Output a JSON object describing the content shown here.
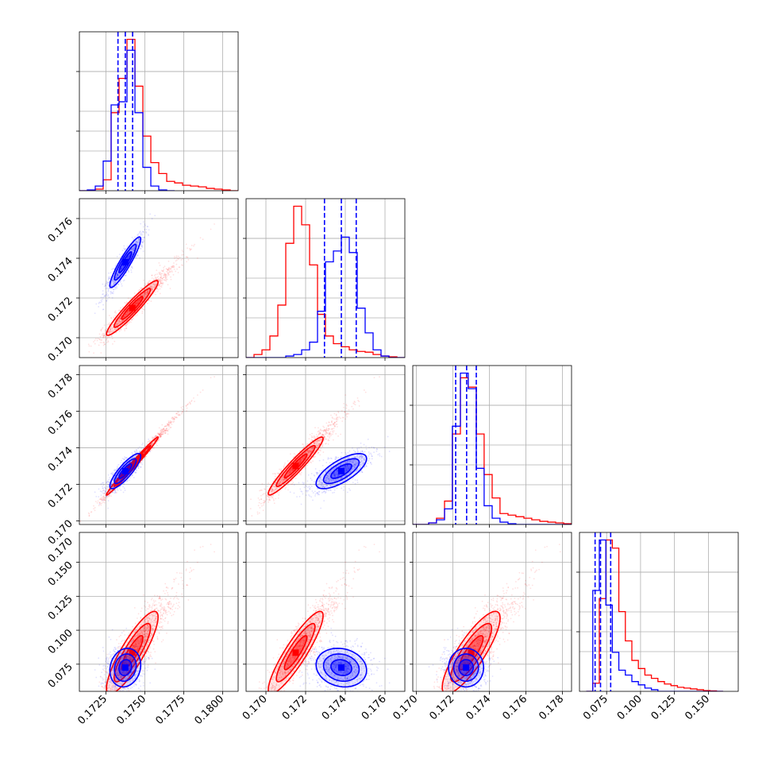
{
  "figure": {
    "type": "corner",
    "grid": true,
    "colors": {
      "series_a": "#0000ff",
      "series_b": "#ff0000",
      "frame": "#000000",
      "grid": "#b0b0b0"
    },
    "description": ""
  },
  "chart_data": {
    "type": "corner",
    "parameters": [
      {
        "range": [
          0.1708,
          0.181
        ],
        "ticks": [
          0.1725,
          0.175,
          0.1775,
          0.18
        ],
        "tick_labels": [
          "0.1725",
          "0.1750",
          "0.1775",
          "0.1800"
        ]
      },
      {
        "range": [
          0.169,
          0.177
        ],
        "ticks": [
          0.17,
          0.172,
          0.174,
          0.176
        ],
        "tick_labels": [
          "0.170",
          "0.172",
          "0.174",
          "0.176"
        ]
      },
      {
        "range": [
          0.1698,
          0.1785
        ],
        "ticks": [
          0.17,
          0.172,
          0.174,
          0.176,
          0.178
        ],
        "tick_labels": [
          "0.170",
          "0.172",
          "0.174",
          "0.176",
          "0.178"
        ]
      },
      {
        "range": [
          0.055,
          0.172
        ],
        "ticks": [
          0.075,
          0.1,
          0.125,
          0.15
        ],
        "tick_labels": [
          "0.075",
          "0.100",
          "0.125",
          "0.150"
        ]
      }
    ],
    "extra_tick_labels": {
      "row3_y_top": "0.170"
    },
    "series": [
      {
        "name": "",
        "color": "#0000ff",
        "quantiles": [
          [
            0.17328,
            0.17375,
            0.17422
          ],
          [
            0.17295,
            0.1738,
            0.17455
          ],
          [
            0.17215,
            0.17275,
            0.17328
          ],
          [
            0.0665,
            0.0705,
            0.078
          ]
        ],
        "histograms": [
          {
            "edges": [
              0.1708,
              0.17131,
              0.17182,
              0.17233,
              0.17284,
              0.17335,
              0.17386,
              0.17437,
              0.17488,
              0.17539,
              0.1759,
              0.17641,
              0.17692
            ],
            "counts": [
              0.0,
              0.005,
              0.03,
              0.19,
              0.55,
              0.57,
              0.9,
              0.5,
              0.15,
              0.03,
              0.005,
              0.0
            ]
          },
          {
            "edges": [
              0.169,
              0.1694,
              0.1698,
              0.1702,
              0.1706,
              0.171,
              0.1714,
              0.1718,
              0.1722,
              0.1726,
              0.173,
              0.1734,
              0.1738,
              0.1742,
              0.1746,
              0.175,
              0.1754,
              0.1758,
              0.1762,
              0.1766,
              0.177
            ],
            "counts": [
              0.0,
              0.0,
              0.0,
              0.0,
              0.0,
              0.01,
              0.02,
              0.05,
              0.1,
              0.3,
              0.62,
              0.69,
              0.78,
              0.68,
              0.32,
              0.16,
              0.05,
              0.01,
              0.0,
              0.0
            ]
          },
          {
            "edges": [
              0.1698,
              0.17023,
              0.17067,
              0.1711,
              0.17154,
              0.17197,
              0.17241,
              0.17284,
              0.17328,
              0.17371,
              0.17415,
              0.17458,
              0.17502,
              0.17545,
              0.17589,
              0.17632,
              0.17676,
              0.1772,
              0.17763,
              0.17807,
              0.1785
            ],
            "counts": [
              0.0,
              0.0,
              0.01,
              0.03,
              0.1,
              0.63,
              0.97,
              0.87,
              0.36,
              0.12,
              0.04,
              0.015,
              0.005,
              0.0,
              0.0,
              0.0,
              0.0,
              0.0,
              0.0,
              0.0
            ]
          },
          {
            "edges": [
              0.06,
              0.0648,
              0.0696,
              0.0744,
              0.0792,
              0.084,
              0.0888,
              0.0936,
              0.0984,
              0.1032,
              0.108,
              0.1128,
              0.1176,
              0.1224,
              0.1272,
              0.132,
              0.1368,
              0.1416,
              0.1464,
              0.1512,
              0.156,
              0.1608
            ],
            "counts": [
              0.0,
              0.62,
              0.93,
              0.53,
              0.24,
              0.13,
              0.1,
              0.06,
              0.04,
              0.02,
              0.01,
              0.0,
              0.0,
              0.0,
              0.0,
              0.0,
              0.0,
              0.0,
              0.0,
              0.0,
              0.0
            ]
          }
        ],
        "cloud": {
          "mean": [
            0.17375,
            0.1738,
            0.17272,
            0.0725
          ],
          "cov": [
            [
              3.4e-07,
              4e-07,
              2.8e-07,
              7e-07
            ],
            [
              4e-07,
              5.6e-07,
              3e-07,
              -9e-07
            ],
            [
              2.8e-07,
              3e-07,
              3.2e-07,
              0.0
            ],
            [
              7e-07,
              -9e-07,
              0.0,
              7e-05
            ]
          ]
        }
      },
      {
        "name": "",
        "color": "#ff0000",
        "quantiles": [],
        "histograms": [
          {
            "edges": [
              0.1708,
              0.17131,
              0.17182,
              0.17233,
              0.17284,
              0.17335,
              0.17386,
              0.17437,
              0.17488,
              0.17539,
              0.1759,
              0.17641,
              0.17692,
              0.17743,
              0.17794,
              0.17845,
              0.17896,
              0.17947,
              0.17998,
              0.18049,
              0.181
            ],
            "counts": [
              0.0,
              0.0,
              0.01,
              0.07,
              0.5,
              0.72,
              0.97,
              0.67,
              0.35,
              0.18,
              0.11,
              0.06,
              0.05,
              0.035,
              0.03,
              0.025,
              0.015,
              0.01,
              0.005,
              0.0
            ]
          },
          {
            "edges": [
              0.169,
              0.1694,
              0.1698,
              0.1702,
              0.1706,
              0.171,
              0.1714,
              0.1718,
              0.1722,
              0.1726,
              0.173,
              0.1734,
              0.1738,
              0.1742,
              0.1746,
              0.175,
              0.1754,
              0.1758,
              0.1762,
              0.1766,
              0.177
            ],
            "counts": [
              0.0,
              0.02,
              0.05,
              0.14,
              0.34,
              0.74,
              0.98,
              0.86,
              0.6,
              0.28,
              0.14,
              0.09,
              0.07,
              0.05,
              0.04,
              0.035,
              0.02,
              0.01,
              0.005,
              0.0
            ]
          },
          {
            "edges": [
              0.1698,
              0.17023,
              0.17067,
              0.1711,
              0.17154,
              0.17197,
              0.17241,
              0.17284,
              0.17328,
              0.17371,
              0.17415,
              0.17458,
              0.17502,
              0.17545,
              0.17589,
              0.17632,
              0.17676,
              0.1772,
              0.17763,
              0.17807,
              0.1785
            ],
            "counts": [
              0.0,
              0.0,
              0.01,
              0.04,
              0.15,
              0.58,
              0.94,
              0.88,
              0.58,
              0.32,
              0.17,
              0.07,
              0.06,
              0.05,
              0.04,
              0.03,
              0.02,
              0.015,
              0.01,
              0.005
            ]
          },
          {
            "edges": [
              0.06,
              0.0648,
              0.0696,
              0.0744,
              0.0792,
              0.084,
              0.0888,
              0.0936,
              0.0984,
              0.1032,
              0.108,
              0.1128,
              0.1176,
              0.1224,
              0.1272,
              0.132,
              0.1368,
              0.1416,
              0.1464,
              0.1512,
              0.156,
              0.1608
            ],
            "counts": [
              0.0,
              0.05,
              0.57,
              0.93,
              0.88,
              0.49,
              0.31,
              0.19,
              0.14,
              0.1,
              0.08,
              0.06,
              0.045,
              0.035,
              0.025,
              0.02,
              0.015,
              0.01,
              0.005,
              0.003,
              0.0
            ]
          }
        ],
        "cloud": {
          "mean": [
            0.1742,
            0.1715,
            0.173,
            0.0835
          ],
          "cov": [
            [
              9.5e-07,
              7.5e-07,
              9e-07,
              1.5e-05
            ],
            [
              7.5e-07,
              6.6e-07,
              7.2e-07,
              1.3e-05
            ],
            [
              9e-07,
              7.2e-07,
              8.7e-07,
              1.4e-05
            ],
            [
              1.5e-05,
              1.3e-05,
              1.4e-05,
              0.00032
            ]
          ]
        }
      }
    ]
  }
}
